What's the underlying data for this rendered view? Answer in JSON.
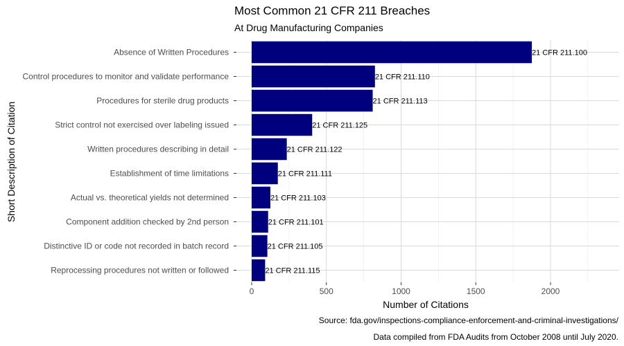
{
  "chart_data": {
    "type": "bar",
    "orientation": "horizontal",
    "title": "Most Common 21 CFR 211 Breaches",
    "subtitle": "At Drug Manufacturing Companies",
    "xlabel": "Number of Citations",
    "ylabel": "Short Description of Citation",
    "xlim": [
      0,
      2300
    ],
    "xticks": [
      0,
      500,
      1000,
      1500,
      2000
    ],
    "categories": [
      "Absence of Written Procedures",
      "Control procedures to monitor and validate performance",
      "Procedures for sterile drug products",
      "Strict control not exercised over labeling issued",
      "Written procedures describing in detail",
      "Establishment of time limitations",
      "Actual vs. theoretical yields not determined",
      "Component addition checked by 2nd person",
      "Distinctive ID or code not recorded in batch record",
      "Reprocessing procedures not written or followed"
    ],
    "values": [
      1875,
      825,
      810,
      405,
      235,
      175,
      125,
      110,
      105,
      90
    ],
    "bar_labels": [
      "21 CFR 211.100",
      "21 CFR 211.110",
      "21 CFR 211.113",
      "21 CFR 211.125",
      "21 CFR 211.122",
      "21 CFR 211.111",
      "21 CFR 211.103",
      "21 CFR 211.101",
      "21 CFR 211.105",
      "21 CFR 211.115"
    ],
    "bar_color": "#00007F",
    "grid": true,
    "caption_lines": [
      "Source: fda.gov/inspections-compliance-enforcement-and-criminal-investigations/",
      "Data compiled from FDA Audits from October 2008 until July 2020."
    ]
  }
}
